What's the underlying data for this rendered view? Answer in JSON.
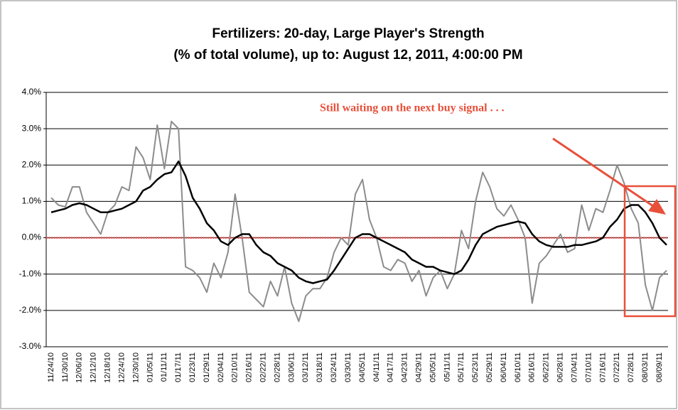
{
  "chart_data": {
    "type": "line",
    "title": "Fertilizers: 20-day, Large Player's Strength",
    "subtitle": "(% of total volume), up to: August 12, 2011, 4:00:00 PM",
    "annotation": "Still waiting on the next buy signal . . .",
    "categories": [
      "11/24/10",
      null,
      "11/30/10",
      null,
      "12/06/10",
      null,
      "12/12/10",
      null,
      "12/18/10",
      null,
      "12/24/10",
      null,
      "12/30/10",
      null,
      "01/05/11",
      null,
      "01/11/11",
      null,
      "01/17/11",
      null,
      "01/23/11",
      null,
      "01/29/11",
      null,
      "02/04/11",
      null,
      "02/10/11",
      null,
      "02/16/11",
      null,
      "02/22/11",
      null,
      "02/28/11",
      null,
      "03/06/11",
      null,
      "03/12/11",
      null,
      "03/18/11",
      null,
      "03/24/11",
      null,
      "03/30/11",
      null,
      "04/05/11",
      null,
      "04/11/11",
      null,
      "04/17/11",
      null,
      "04/23/11",
      null,
      "04/29/11",
      null,
      "05/05/11",
      null,
      "05/11/11",
      null,
      "05/17/11",
      null,
      "05/23/11",
      null,
      "05/29/11",
      null,
      "06/04/11",
      null,
      "06/10/11",
      null,
      "06/16/11",
      null,
      "06/22/11",
      null,
      "06/28/11",
      null,
      "07/04/11",
      null,
      "07/10/11",
      null,
      "07/16/11",
      null,
      "07/22/11",
      null,
      "07/28/11",
      null,
      "08/03/11",
      null,
      "08/09/11",
      null
    ],
    "series": [
      {
        "color": "#8c8c8c",
        "values": [
          1.1,
          0.9,
          0.85,
          1.4,
          1.4,
          0.7,
          0.4,
          0.1,
          0.7,
          0.9,
          1.4,
          1.3,
          2.5,
          2.2,
          1.6,
          3.1,
          1.9,
          3.2,
          3.0,
          -0.8,
          -0.9,
          -1.1,
          -1.5,
          -0.7,
          -1.1,
          -0.4,
          1.2,
          0.0,
          -1.5,
          -1.7,
          -1.9,
          -1.2,
          -1.6,
          -0.8,
          -1.8,
          -2.3,
          -1.6,
          -1.4,
          -1.4,
          -1.1,
          -0.4,
          0.0,
          -0.2,
          1.2,
          1.6,
          0.5,
          0.0,
          -0.8,
          -0.9,
          -0.6,
          -0.7,
          -1.2,
          -0.9,
          -1.6,
          -1.1,
          -0.9,
          -1.4,
          -1.0,
          0.2,
          -0.3,
          1.0,
          1.8,
          1.4,
          0.8,
          0.6,
          0.9,
          0.5,
          0.0,
          -1.8,
          -0.7,
          -0.5,
          -0.2,
          0.1,
          -0.4,
          -0.3,
          0.9,
          0.2,
          0.8,
          0.7,
          1.3,
          2.0,
          1.5,
          0.8,
          0.4,
          -1.3,
          -2.0,
          -1.1,
          -0.9
        ]
      },
      {
        "color": "#000000",
        "values": [
          0.7,
          0.75,
          0.8,
          0.9,
          0.95,
          0.9,
          0.8,
          0.7,
          0.7,
          0.75,
          0.8,
          0.9,
          1.0,
          1.3,
          1.4,
          1.6,
          1.75,
          1.8,
          2.1,
          1.7,
          1.1,
          0.8,
          0.4,
          0.2,
          -0.1,
          -0.2,
          0.0,
          0.1,
          0.1,
          -0.2,
          -0.4,
          -0.5,
          -0.7,
          -0.8,
          -0.9,
          -1.1,
          -1.2,
          -1.25,
          -1.2,
          -1.15,
          -0.9,
          -0.6,
          -0.3,
          0.0,
          0.1,
          0.1,
          0.0,
          -0.1,
          -0.2,
          -0.3,
          -0.4,
          -0.6,
          -0.7,
          -0.8,
          -0.8,
          -0.9,
          -0.95,
          -1.0,
          -0.9,
          -0.6,
          -0.2,
          0.1,
          0.2,
          0.3,
          0.35,
          0.4,
          0.45,
          0.4,
          0.1,
          -0.1,
          -0.2,
          -0.25,
          -0.25,
          -0.25,
          -0.2,
          -0.2,
          -0.15,
          -0.1,
          0.0,
          0.3,
          0.5,
          0.8,
          0.9,
          0.9,
          0.7,
          0.4,
          0.0,
          -0.2
        ]
      }
    ],
    "ylim": [
      -3,
      4
    ],
    "yticks": [
      {
        "value": -3,
        "label": "-3.0%"
      },
      {
        "value": -2,
        "label": "-2.0%"
      },
      {
        "value": -1,
        "label": "-1.0%"
      },
      {
        "value": 0,
        "label": "0.0%"
      },
      {
        "value": 1,
        "label": "1.0%"
      },
      {
        "value": 2,
        "label": "2.0%"
      },
      {
        "value": 3,
        "label": "3.0%"
      },
      {
        "value": 4,
        "label": "4.0%"
      }
    ],
    "grid": true
  }
}
